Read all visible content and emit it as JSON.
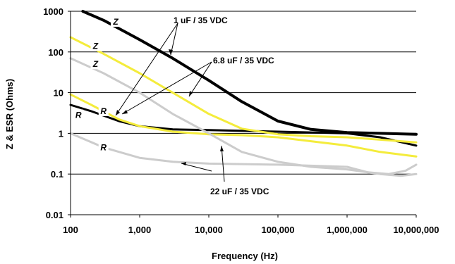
{
  "chart_data": {
    "type": "line",
    "xlabel": "Frequency (Hz)",
    "ylabel": "Z & ESR (Ohms)",
    "xscale": "log",
    "yscale": "log",
    "xlim": [
      100,
      10000000
    ],
    "ylim": [
      0.01,
      1000
    ],
    "x_ticks": [
      "100",
      "1,000",
      "10,000",
      "100,000",
      "1,000,000",
      "10,000,000"
    ],
    "y_ticks": [
      "1000",
      "100",
      "10",
      "1",
      "0.1",
      "0.01"
    ],
    "grid": "horizontal",
    "legend": "none",
    "series": [
      {
        "color": "#000000",
        "points": [
          [
            150,
            1000
          ],
          [
            300,
            600
          ],
          [
            1000,
            200
          ],
          [
            3000,
            70
          ],
          [
            10000,
            20
          ],
          [
            30000,
            6
          ],
          [
            100000,
            2
          ],
          [
            300000,
            1.25
          ],
          [
            1000000,
            1.05
          ],
          [
            3000000,
            1.0
          ],
          [
            10000000,
            0.95
          ]
        ]
      },
      {
        "color": "#000000",
        "points": [
          [
            100,
            5
          ],
          [
            200,
            3.5
          ],
          [
            500,
            2
          ],
          [
            1000,
            1.5
          ],
          [
            3000,
            1.25
          ],
          [
            10000,
            1.2
          ],
          [
            100000,
            1.1
          ],
          [
            1000000,
            1.0
          ],
          [
            3000000,
            0.8
          ],
          [
            10000000,
            0.5
          ]
        ]
      },
      {
        "color": "#f4ec3c",
        "points": [
          [
            100,
            230
          ],
          [
            300,
            90
          ],
          [
            1000,
            30
          ],
          [
            3000,
            10
          ],
          [
            10000,
            3
          ],
          [
            30000,
            1.3
          ],
          [
            100000,
            0.95
          ],
          [
            300000,
            0.85
          ],
          [
            1000000,
            0.8
          ],
          [
            3000000,
            0.7
          ],
          [
            10000000,
            0.6
          ]
        ]
      },
      {
        "color": "#f4ec3c",
        "points": [
          [
            100,
            9
          ],
          [
            200,
            5
          ],
          [
            500,
            2.2
          ],
          [
            1000,
            1.5
          ],
          [
            3000,
            1.1
          ],
          [
            10000,
            0.95
          ],
          [
            30000,
            0.9
          ],
          [
            100000,
            0.8
          ],
          [
            1000000,
            0.5
          ],
          [
            3000000,
            0.35
          ],
          [
            10000000,
            0.27
          ]
        ]
      },
      {
        "color": "#cccccc",
        "points": [
          [
            100,
            70
          ],
          [
            300,
            30
          ],
          [
            1000,
            10
          ],
          [
            3000,
            3
          ],
          [
            10000,
            1
          ],
          [
            30000,
            0.35
          ],
          [
            100000,
            0.2
          ],
          [
            300000,
            0.15
          ],
          [
            1000000,
            0.13
          ],
          [
            3000000,
            0.1
          ],
          [
            6000000,
            0.09
          ],
          [
            10000000,
            0.1
          ]
        ]
      },
      {
        "color": "#cccccc",
        "points": [
          [
            100,
            1.0
          ],
          [
            300,
            0.45
          ],
          [
            1000,
            0.25
          ],
          [
            3000,
            0.2
          ],
          [
            10000,
            0.18
          ],
          [
            100000,
            0.17
          ],
          [
            1000000,
            0.15
          ],
          [
            2000000,
            0.11
          ],
          [
            4000000,
            0.1
          ],
          [
            7000000,
            0.12
          ],
          [
            10000000,
            0.17
          ]
        ]
      }
    ],
    "curve_tags": [
      {
        "text": "Z",
        "x": 450,
        "y": 550
      },
      {
        "text": "Z",
        "x": 230,
        "y": 140
      },
      {
        "text": "Z",
        "x": 230,
        "y": 50
      },
      {
        "text": "R",
        "x": 300,
        "y": 3.5
      },
      {
        "text": "R",
        "x": 130,
        "y": 2.8
      },
      {
        "text": "R",
        "x": 300,
        "y": 0.45
      }
    ],
    "annotations": [
      {
        "text": "1 uF / 35 VDC"
      },
      {
        "text": "6.8 uF / 35 VDC"
      },
      {
        "text": "22 uF / 35 VDC"
      }
    ]
  }
}
